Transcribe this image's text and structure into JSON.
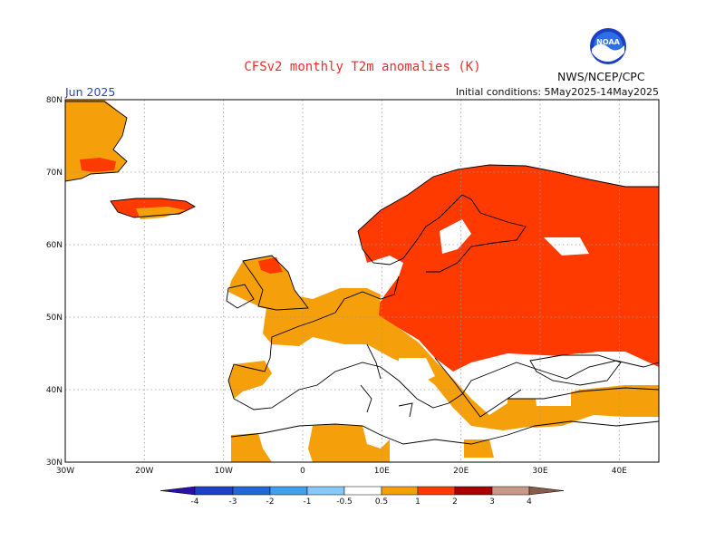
{
  "header": {
    "title": "CFSv2 monthly T2m anomalies (K)",
    "organization": "NWS/NCEP/CPC",
    "logo_text": "NOAA",
    "period": "Jun 2025",
    "initial_conditions": "Initial conditions: 5May2025-14May2025"
  },
  "map": {
    "lon_range": [
      -30,
      45
    ],
    "lat_range": [
      30,
      80
    ],
    "grid": true,
    "lat_labels": [
      "80N",
      "70N",
      "60N",
      "50N",
      "40N",
      "30N"
    ],
    "lon_labels": [
      "30W",
      "20W",
      "10W",
      "0",
      "10E",
      "20E",
      "30E",
      "40E"
    ],
    "colors": {
      "anom_0_5_to_1": "#f5a00a",
      "anom_1_to_2": "#ff3a00",
      "anom_2_to_3": "#a80000",
      "land_outline": "#000000",
      "grid": "#9a9a9a"
    }
  },
  "colorbar": {
    "labels": [
      "-4",
      "-3",
      "-2",
      "-1",
      "-0.5",
      "0.5",
      "1",
      "2",
      "3",
      "4"
    ],
    "colors": [
      "#2a10a8",
      "#1f3fc8",
      "#1f6ad8",
      "#3fa0f0",
      "#88c8f8",
      "#ffffff",
      "#f5a00a",
      "#ff3a00",
      "#a80000",
      "#c89888",
      "#8a5a4a"
    ]
  }
}
